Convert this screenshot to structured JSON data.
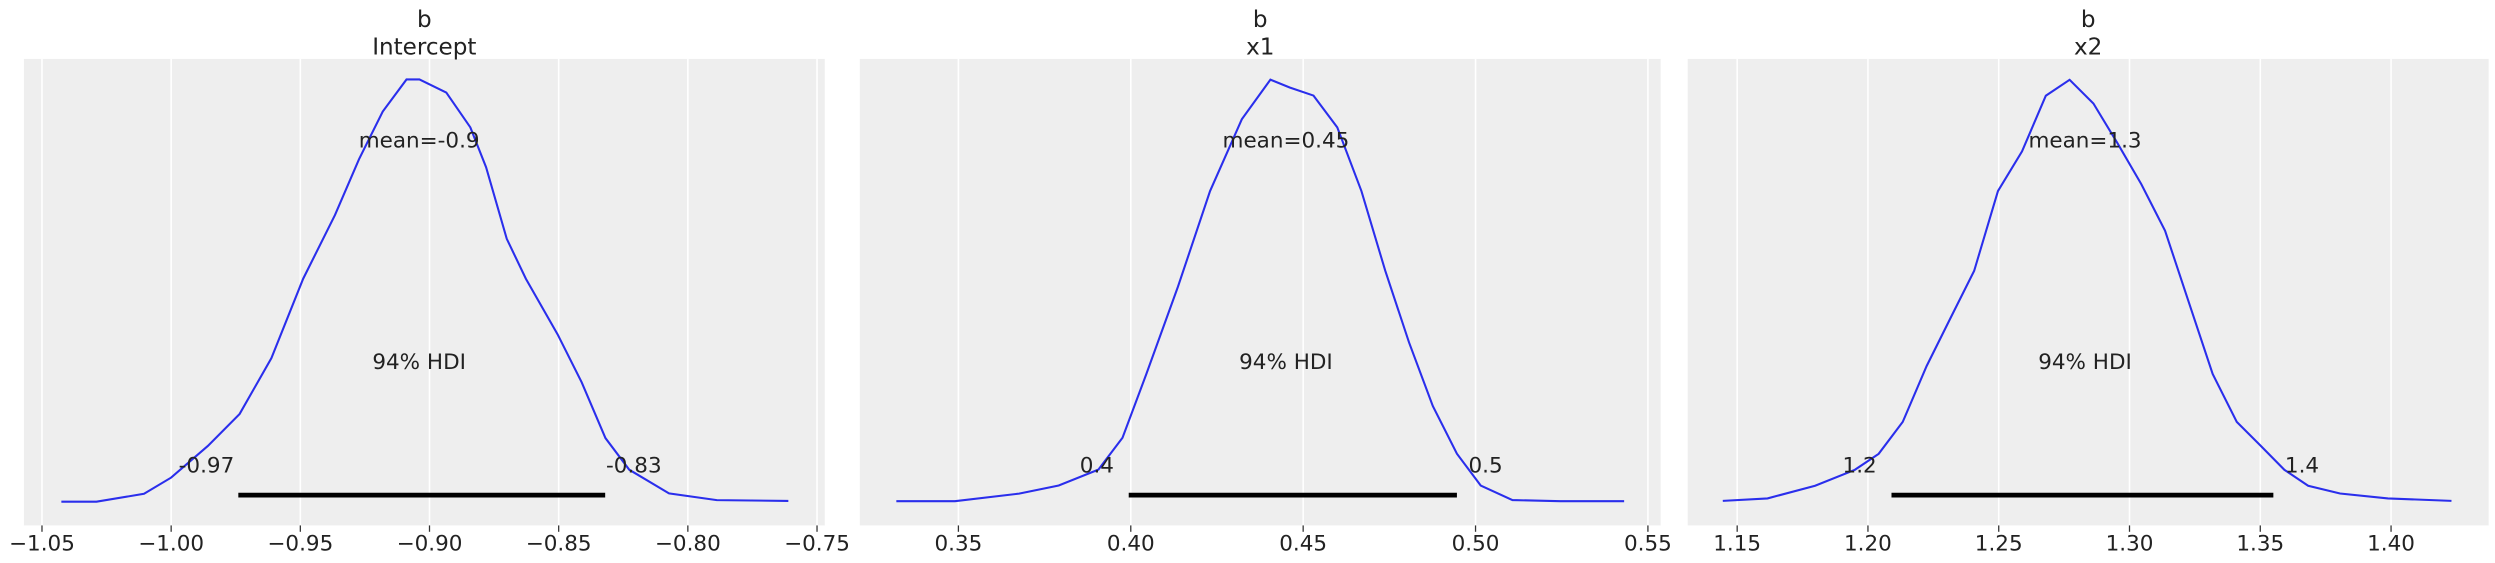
{
  "chart_data": [
    {
      "type": "line",
      "title": [
        "b",
        "Intercept"
      ],
      "color": "#2a2eec",
      "grid": true,
      "x": [
        -1.0425,
        -1.0289,
        -1.0105,
        -1.0,
        -0.9858,
        -0.9735,
        -0.9612,
        -0.9489,
        -0.9366,
        -0.9273,
        -0.9181,
        -0.9089,
        -0.9039,
        -0.8935,
        -0.8842,
        -0.8781,
        -0.8701,
        -0.8627,
        -0.8504,
        -0.8411,
        -0.8319,
        -0.8227,
        -0.8073,
        -0.7888,
        -0.7611
      ],
      "values": [
        0.0,
        0.0,
        0.2,
        0.61,
        1.41,
        2.22,
        3.63,
        5.64,
        7.25,
        8.66,
        9.87,
        10.68,
        10.68,
        10.35,
        9.47,
        8.46,
        6.65,
        5.64,
        4.23,
        3.02,
        1.61,
        0.81,
        0.21,
        0.04,
        0.02
      ],
      "xlim": [
        -1.057,
        -0.747
      ],
      "ylim": [
        -0.6,
        11.2
      ],
      "xticks": [
        {
          "value": -1.05,
          "label": "−1.05"
        },
        {
          "value": -1.0,
          "label": "−1.00"
        },
        {
          "value": -0.95,
          "label": "−0.95"
        },
        {
          "value": -0.9,
          "label": "−0.90"
        },
        {
          "value": -0.85,
          "label": "−0.85"
        },
        {
          "value": -0.8,
          "label": "−0.80"
        },
        {
          "value": -0.75,
          "label": "−0.75"
        }
      ],
      "mean": {
        "value": -0.904,
        "label": "mean=-0.9"
      },
      "hdi_label": "94% HDI",
      "hdi": [
        {
          "value": -0.974,
          "label": "-0.97"
        },
        {
          "value": -0.832,
          "label": "-0.83"
        }
      ]
    },
    {
      "type": "line",
      "title": [
        "b",
        "x1"
      ],
      "color": "#2a2eec",
      "grid": true,
      "x": [
        0.332,
        0.349,
        0.3676,
        0.3791,
        0.3906,
        0.3976,
        0.4045,
        0.4137,
        0.423,
        0.4322,
        0.4405,
        0.4461,
        0.453,
        0.4599,
        0.4669,
        0.4738,
        0.4807,
        0.4876,
        0.4946,
        0.5015,
        0.5107,
        0.5246,
        0.5431
      ],
      "values": [
        0.0,
        0.0,
        0.28,
        0.58,
        1.17,
        2.35,
        4.71,
        7.96,
        11.5,
        14.16,
        15.63,
        15.34,
        15.04,
        13.86,
        11.5,
        8.55,
        5.89,
        3.53,
        1.76,
        0.58,
        0.04,
        0.0,
        0.0
      ],
      "xlim": [
        0.3214,
        0.5537
      ],
      "ylim": [
        -0.9,
        16.4
      ],
      "xticks": [
        0.35,
        {
          "value": 0.4,
          "label": "0.40"
        },
        0.45,
        {
          "value": 0.5,
          "label": "0.50"
        },
        0.55
      ],
      "mean": {
        "value": 0.445,
        "label": "mean=0.45"
      },
      "hdi_label": "94% HDI",
      "hdi": [
        {
          "value": 0.3994,
          "label": "0.4"
        },
        {
          "value": 0.4946,
          "label": "0.5"
        }
      ]
    },
    {
      "type": "line",
      "title": [
        "b",
        "x2"
      ],
      "color": "#2a2eec",
      "grid": true,
      "x": [
        1.1445,
        1.1616,
        1.1798,
        1.195,
        1.2041,
        1.2133,
        1.2224,
        1.2315,
        1.2406,
        1.2497,
        1.2589,
        1.268,
        1.2771,
        1.2862,
        1.2954,
        1.3045,
        1.3136,
        1.3227,
        1.3318,
        1.341,
        1.3501,
        1.3592,
        1.3683,
        1.3805,
        1.3988,
        1.4231
      ],
      "values": [
        0.0,
        0.06,
        0.37,
        0.76,
        1.15,
        1.93,
        3.29,
        4.46,
        5.62,
        7.57,
        8.54,
        9.9,
        10.29,
        9.71,
        8.74,
        7.74,
        6.6,
        4.85,
        3.1,
        1.93,
        1.35,
        0.76,
        0.37,
        0.18,
        0.06,
        0.0
      ],
      "xlim": [
        1.1311,
        1.4373
      ],
      "ylim": [
        -0.6,
        10.8
      ],
      "xticks": [
        1.15,
        {
          "value": 1.2,
          "label": "1.20"
        },
        1.25,
        {
          "value": 1.3,
          "label": "1.30"
        },
        1.35,
        {
          "value": 1.4,
          "label": "1.40"
        }
      ],
      "mean": {
        "value": 1.283,
        "label": "mean=1.3"
      },
      "hdi_label": "94% HDI",
      "hdi": [
        {
          "value": 1.209,
          "label": "1.2"
        },
        {
          "value": 1.355,
          "label": "1.4"
        }
      ]
    }
  ]
}
